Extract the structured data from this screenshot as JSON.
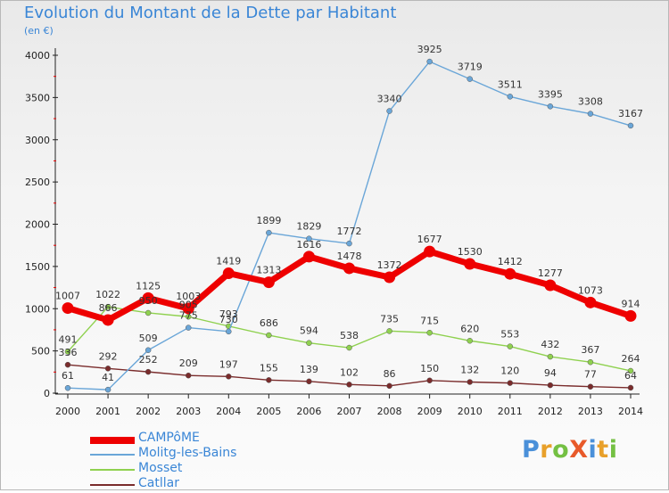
{
  "title": "Evolution du Montant de la Dette par Habitant",
  "subtitle": "(en €)",
  "brand": "ProXiti",
  "chart_data": {
    "type": "line",
    "x": [
      "2000",
      "2001",
      "2002",
      "2003",
      "2004",
      "2005",
      "2006",
      "2007",
      "2008",
      "2009",
      "2010",
      "2011",
      "2012",
      "2013",
      "2014"
    ],
    "ylim": [
      0,
      4000
    ],
    "yticks": [
      0,
      500,
      1000,
      1500,
      2000,
      2500,
      3000,
      3500,
      4000
    ],
    "grid": false,
    "legend_position": "bottom-left",
    "series": [
      {
        "name": "CAMPôME",
        "color": "#ee0000",
        "emphasis": true,
        "values": [
          1007,
          866,
          1125,
          1003,
          1419,
          1313,
          1616,
          1478,
          1372,
          1677,
          1530,
          1412,
          1277,
          1073,
          914
        ]
      },
      {
        "name": "Molitg-les-Bains",
        "color": "#6aa6d8",
        "values": [
          61,
          41,
          509,
          775,
          730,
          1899,
          1829,
          1772,
          3340,
          3925,
          3719,
          3511,
          3395,
          3308,
          3167
        ]
      },
      {
        "name": "Mosset",
        "color": "#8fd14f",
        "values": [
          491,
          1022,
          950,
          905,
          793,
          686,
          594,
          538,
          735,
          715,
          620,
          553,
          432,
          367,
          264
        ]
      },
      {
        "name": "Catllar",
        "color": "#7a2c2c",
        "values": [
          336,
          292,
          252,
          209,
          197,
          155,
          139,
          102,
          86,
          150,
          132,
          120,
          94,
          77,
          64
        ]
      }
    ]
  }
}
